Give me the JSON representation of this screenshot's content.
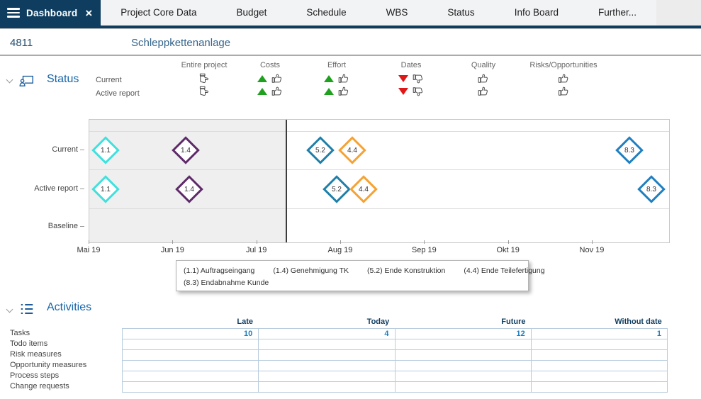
{
  "colors": {
    "navy": "#0E3D60",
    "section_blue": "#1565A9",
    "link_blue": "#1B7EC2",
    "trend_up_green": "#1FA11F",
    "trend_down_red": "#E01717"
  },
  "tabs": {
    "active_label": "Dashboard",
    "items": [
      "Project Core Data",
      "Budget",
      "Schedule",
      "WBS",
      "Status",
      "Info Board",
      "Further..."
    ]
  },
  "project_header": {
    "id": "4811",
    "name": "Schleppkettenanlage"
  },
  "status": {
    "title": "Status",
    "row_labels": [
      "Current",
      "Active report"
    ],
    "columns": [
      {
        "label": "Entire project",
        "current": {
          "trend": null,
          "thumb": "neutral"
        },
        "active": {
          "trend": null,
          "thumb": "neutral"
        }
      },
      {
        "label": "Costs",
        "current": {
          "trend": "up",
          "thumb": "up"
        },
        "active": {
          "trend": "up",
          "thumb": "up"
        }
      },
      {
        "label": "Effort",
        "current": {
          "trend": "up",
          "thumb": "up"
        },
        "active": {
          "trend": "up",
          "thumb": "up"
        }
      },
      {
        "label": "Dates",
        "current": {
          "trend": "down",
          "thumb": "down"
        },
        "active": {
          "trend": "down",
          "thumb": "down"
        }
      },
      {
        "label": "Quality",
        "current": {
          "trend": null,
          "thumb": "up"
        },
        "active": {
          "trend": null,
          "thumb": "up"
        }
      },
      {
        "label": "Risks/Opportunities",
        "current": {
          "trend": null,
          "thumb": "up"
        },
        "active": {
          "trend": null,
          "thumb": "up"
        }
      }
    ]
  },
  "chart_data": {
    "type": "scatter",
    "subtype": "milestone-timeline",
    "rows": [
      "Current",
      "Active report",
      "Baseline"
    ],
    "x_ticks": [
      "Mai 19",
      "Jun 19",
      "Jul 19",
      "Aug 19",
      "Sep 19",
      "Okt 19",
      "Nov 19"
    ],
    "today_pos_pct": 34,
    "milestones": [
      {
        "row": "Current",
        "id": "1.1",
        "pos_pct": 2.8,
        "color": "#40E0DD"
      },
      {
        "row": "Current",
        "id": "1.4",
        "pos_pct": 16.6,
        "color": "#5E2A68"
      },
      {
        "row": "Current",
        "id": "5.2",
        "pos_pct": 39.8,
        "color": "#1F7FA8"
      },
      {
        "row": "Current",
        "id": "4.4",
        "pos_pct": 45.4,
        "color": "#F6A233"
      },
      {
        "row": "Current",
        "id": "8.3",
        "pos_pct": 93.2,
        "color": "#1F7FC0"
      },
      {
        "row": "Active report",
        "id": "1.1",
        "pos_pct": 2.8,
        "color": "#40E0DD"
      },
      {
        "row": "Active report",
        "id": "1.4",
        "pos_pct": 17.2,
        "color": "#5E2A68"
      },
      {
        "row": "Active report",
        "id": "5.2",
        "pos_pct": 42.7,
        "color": "#1F7FA8"
      },
      {
        "row": "Active report",
        "id": "4.4",
        "pos_pct": 47.3,
        "color": "#F6A233"
      },
      {
        "row": "Active report",
        "id": "8.3",
        "pos_pct": 97.0,
        "color": "#1F7FC0"
      }
    ],
    "legend_lines": [
      [
        "(1.1) Auftragseingang",
        "(1.4) Genehmigung TK",
        "(5.2) Ende Konstruktion",
        "(4.4) Ende Teilefertigung"
      ],
      [
        "(8.3) Endabnahme Kunde"
      ]
    ]
  },
  "activities": {
    "title": "Activities",
    "columns": [
      "Late",
      "Today",
      "Future",
      "Without date"
    ],
    "rows": [
      {
        "label": "Tasks",
        "values": [
          "10",
          "4",
          "12",
          "1"
        ]
      },
      {
        "label": "Todo items",
        "values": [
          "",
          "",
          "",
          ""
        ]
      },
      {
        "label": "Risk measures",
        "values": [
          "",
          "",
          "",
          ""
        ]
      },
      {
        "label": "Opportunity measures",
        "values": [
          "",
          "",
          "",
          ""
        ]
      },
      {
        "label": "Process steps",
        "values": [
          "",
          "",
          "",
          ""
        ]
      },
      {
        "label": "Change requests",
        "values": [
          "",
          "",
          "",
          ""
        ]
      }
    ]
  }
}
